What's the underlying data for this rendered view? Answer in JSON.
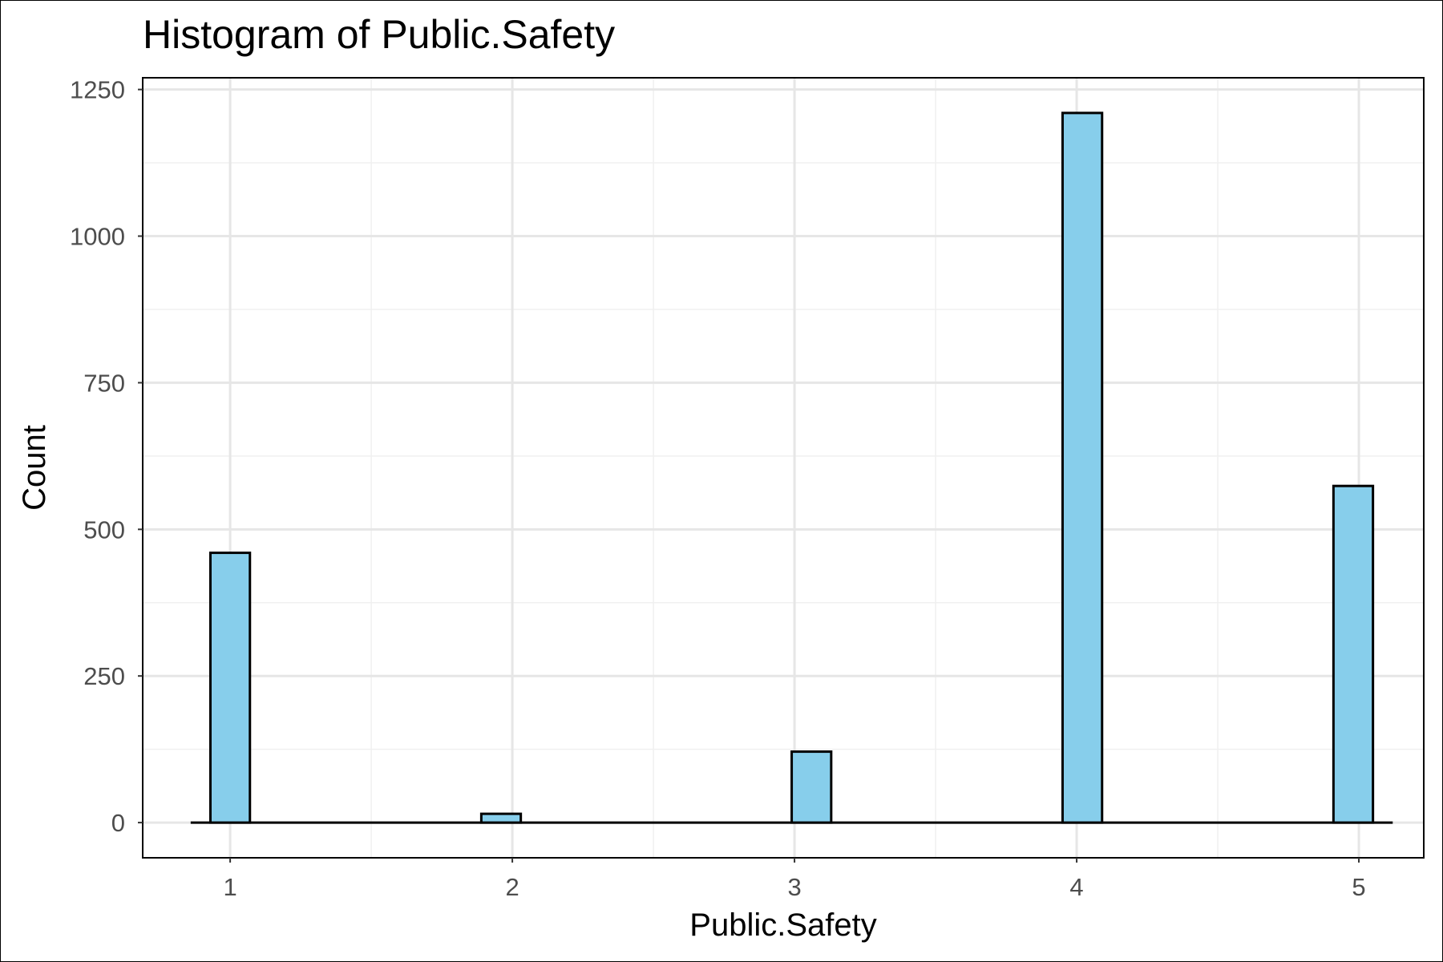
{
  "chart_data": {
    "type": "bar",
    "title": "Histogram of Public.Safety",
    "xlabel": "Public.Safety",
    "ylabel": "Count",
    "bin_width": 0.14,
    "series": [
      {
        "x": [
          1,
          1.96,
          3.06,
          4.02,
          4.98
        ],
        "values": [
          460,
          15,
          121,
          1210,
          574
        ]
      }
    ],
    "baseline_range": [
      0.86,
      5.12
    ],
    "xlim": [
      0.69,
      5.23
    ],
    "ylim": [
      -60,
      1270
    ],
    "x_ticks": [
      "1",
      "2",
      "3",
      "4",
      "5"
    ],
    "y_ticks": [
      "0",
      "250",
      "500",
      "750",
      "1000",
      "1250"
    ],
    "grid": true,
    "colors": {
      "bar_fill": "#87CEEB",
      "bar_stroke": "#000000",
      "grid": "#e6e6e6"
    }
  }
}
